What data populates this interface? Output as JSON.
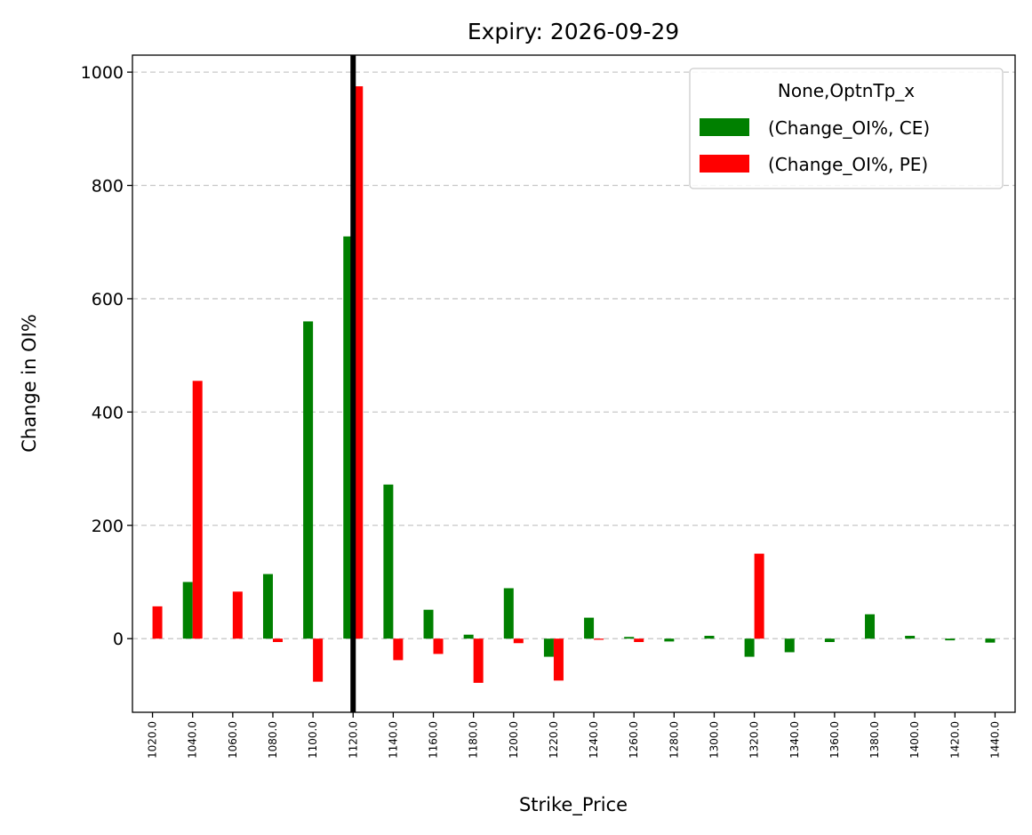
{
  "chart_data": {
    "type": "bar",
    "title": "Expiry: 2026-09-29",
    "xlabel": "Strike_Price",
    "ylabel": "Change in OI%",
    "ylim": [
      -130,
      1030
    ],
    "yticks": [
      0,
      200,
      400,
      600,
      800,
      1000
    ],
    "grid": "y-dashed",
    "categories": [
      "1020.0",
      "1040.0",
      "1060.0",
      "1080.0",
      "1100.0",
      "1120.0",
      "1140.0",
      "1160.0",
      "1180.0",
      "1200.0",
      "1220.0",
      "1240.0",
      "1260.0",
      "1280.0",
      "1300.0",
      "1320.0",
      "1340.0",
      "1360.0",
      "1380.0",
      "1400.0",
      "1420.0",
      "1440.0"
    ],
    "series": [
      {
        "name": "(Change_OI%, CE)",
        "color": "#008000",
        "values": [
          0,
          100,
          0,
          114,
          560,
          710,
          272,
          51,
          7,
          89,
          -32,
          37,
          3,
          -5,
          5,
          -32,
          -24,
          -6,
          43,
          5,
          -3,
          -7
        ]
      },
      {
        "name": "(Change_OI%, PE)",
        "color": "#ff0000",
        "values": [
          57,
          455,
          83,
          -6,
          -76,
          975,
          -38,
          -27,
          -78,
          -8,
          -74,
          -2,
          -6,
          0,
          0,
          150,
          0,
          0,
          0,
          0,
          0,
          0
        ]
      }
    ],
    "vline": {
      "x": "1120.0",
      "color": "#000000"
    },
    "legend": {
      "title": "None,OptnTp_x",
      "placement": "top-right"
    }
  }
}
